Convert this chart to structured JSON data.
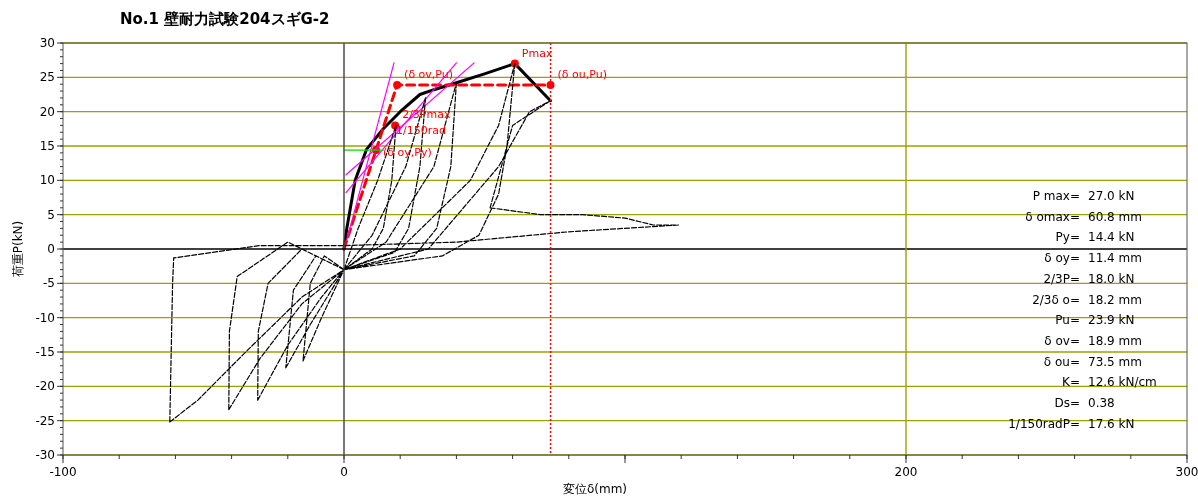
{
  "chart_data": {
    "type": "line",
    "title": "No.1 壁耐力試験204スギG-2",
    "xlabel": "変位δ(mm)",
    "ylabel": "荷重P(kN)",
    "xlim": [
      -100,
      300
    ],
    "xticks": [
      -100,
      0,
      {
        "value": 100,
        "label": null
      },
      200,
      300
    ],
    "ylim": [
      -30,
      30
    ],
    "yticks": [
      -30,
      -25,
      -20,
      -15,
      -10,
      -5,
      0,
      5,
      10,
      15,
      20,
      25,
      30
    ],
    "grid": "y",
    "series": [
      {
        "color": "#000000",
        "line_style": "solid",
        "marker": "none",
        "x": [
          0,
          1,
          4,
          8,
          14,
          20,
          27,
          32,
          40,
          50,
          60.8,
          73.5
        ],
        "values": [
          0,
          3,
          10,
          14.5,
          17.5,
          20,
          22.5,
          23.2,
          24.2,
          25.5,
          27.0,
          21.6
        ]
      },
      {
        "color": "#ff0000",
        "line_style": "dashed",
        "marker": "none",
        "x": [
          0,
          18.9,
          73.5
        ],
        "values": [
          0,
          23.9,
          23.9
        ]
      },
      {
        "type": "scatter",
        "color": "#ff0000",
        "marker": "circle",
        "x": [
          11.4,
          18.2,
          18.9,
          60.8,
          73.5
        ],
        "values": [
          14.4,
          18.0,
          23.9,
          27.0,
          23.9
        ]
      },
      {
        "color": "#ff00ff",
        "line_style": "solid",
        "marker": "none",
        "x": [
          0.7,
          46.3
        ],
        "values": [
          10.8,
          27.1
        ]
      },
      {
        "color": "#ff00ff",
        "line_style": "solid",
        "marker": "none",
        "x": [
          0.7,
          40
        ],
        "values": [
          8.2,
          27.1
        ]
      },
      {
        "color": "#ff00ff",
        "line_style": "solid",
        "marker": "none",
        "x": [
          1,
          17.8
        ],
        "values": [
          1.3,
          27.1
        ]
      },
      {
        "color": "#00dd00",
        "line_style": "solid",
        "marker": "none",
        "x": [
          0,
          14
        ],
        "values": [
          14.4,
          14.4
        ]
      },
      {
        "color": "#000000",
        "line_style": "dashed",
        "marker": "none",
        "x": [
          0,
          5,
          12,
          18.5,
          null,
          18.5,
          17,
          14,
          10,
          0,
          null,
          0,
          -7,
          -12,
          -14.6,
          null,
          -14.6,
          -8,
          0,
          null,
          0,
          10,
          22,
          29,
          null,
          29,
          27,
          23,
          18,
          0,
          null,
          0,
          -10,
          -18,
          -20.7,
          null,
          -20.7,
          -12,
          0,
          null,
          0,
          15,
          32,
          40,
          null,
          40,
          38,
          33,
          25,
          0,
          null,
          0,
          -15,
          -27,
          -30.5,
          -30.7,
          null,
          -30.7,
          -20,
          -8,
          0,
          null,
          0,
          20,
          45,
          55,
          60.8,
          null,
          60.8,
          58,
          55,
          48,
          35,
          0,
          null,
          0,
          -20,
          -38,
          -40.8,
          -41,
          null,
          -41,
          -30,
          -15,
          0,
          null,
          0,
          30,
          55,
          66,
          73.5,
          null,
          73.5,
          60,
          52,
          null,
          52,
          70,
          85,
          100,
          110,
          119,
          null,
          119,
          80,
          40,
          0,
          -30,
          -60.6,
          -61,
          -61.5,
          -62,
          null,
          -62,
          -52,
          -35,
          -15,
          0
        ],
        "values": [
          -3,
          3,
          10,
          18,
          null,
          18,
          10,
          3,
          0,
          -3,
          null,
          -3,
          -1,
          -5,
          -16.3,
          null,
          -16.3,
          -10,
          -3,
          null,
          -3,
          2,
          12,
          22,
          null,
          22,
          12,
          3,
          -0.5,
          -3,
          null,
          -3,
          -1,
          -6,
          -17.3,
          null,
          -17.3,
          -11,
          -3,
          null,
          -3,
          1,
          12,
          24.2,
          null,
          24.2,
          12,
          3,
          -1,
          -3,
          null,
          -3,
          0,
          -5,
          -12,
          -22,
          null,
          -22,
          -14,
          -7,
          -3,
          null,
          -3,
          0,
          10,
          18,
          27,
          null,
          27,
          15,
          8,
          2,
          -1,
          -3,
          null,
          -3,
          1,
          -4,
          -12,
          -23.4,
          null,
          -23.4,
          -16,
          -8,
          -3,
          null,
          -3,
          0,
          12,
          20,
          21.6,
          null,
          21.6,
          18,
          6,
          null,
          6,
          5,
          5,
          4.5,
          3.5,
          3.5,
          null,
          3.5,
          2.5,
          1,
          0.5,
          0.5,
          -1.3,
          -5,
          -15,
          -25.2,
          null,
          -25.2,
          -22,
          -15,
          -7,
          -3
        ]
      }
    ],
    "ref_lines": [
      {
        "axis": "x",
        "value": 0,
        "color": "#404040",
        "line_style": "solid"
      },
      {
        "axis": "y",
        "value": 0,
        "color": "#000000",
        "line_style": "solid"
      },
      {
        "axis": "x",
        "value": 200,
        "color": "#a0a000",
        "line_style": "solid"
      },
      {
        "axis": "x",
        "value": 73.5,
        "color": "#ff0000",
        "line_style": "dotted"
      }
    ],
    "annotations": [
      {
        "text": "(δ ov,Pu)",
        "x": 18.9,
        "y": 23.9
      },
      {
        "text": "(δ ou,Pu)",
        "x": 73.5,
        "y": 23.9
      },
      {
        "text": "2/3Pmax",
        "x": 18.2,
        "y": 18.0
      },
      {
        "text": "1/150rad",
        "x": 16,
        "y": 17.6
      },
      {
        "text": "(δ oy,Py)",
        "x": 11.4,
        "y": 14.4
      },
      {
        "text": "Pmax",
        "x": 60.8,
        "y": 27.0
      },
      "P max= 27.0 kN",
      "δ omax= 60.8 mm",
      "Py= 14.4 kN",
      "δ oy= 11.4 mm",
      "2/3P= 18.0 kN",
      "2/3δ o= 18.2 mm",
      "Pu= 23.9 kN",
      "δ ov= 18.9 mm",
      "δ ou= 73.5 mm",
      "K= 12.6 kN/cm",
      "Ds= 0.38",
      "1/150radP= 17.6 kN"
    ]
  }
}
